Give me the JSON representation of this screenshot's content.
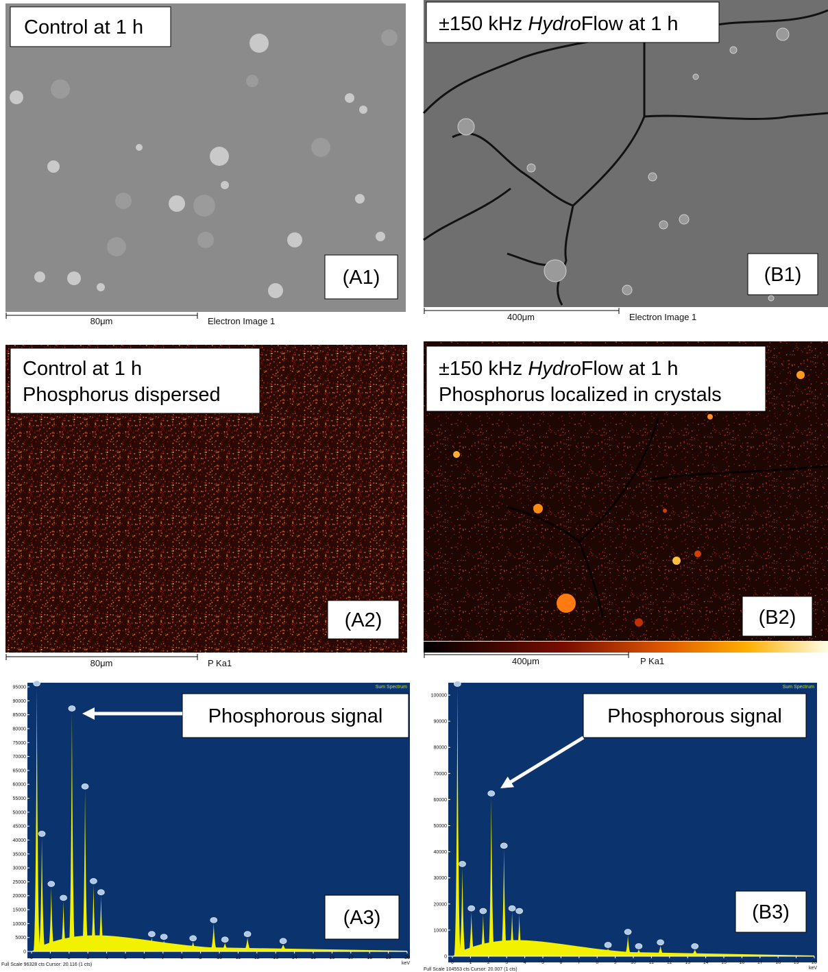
{
  "panels": {
    "a1": {
      "caption": "Control at 1 h",
      "tag": "(A1)",
      "scale": "80μm",
      "source": "Electron Image 1"
    },
    "b1": {
      "caption": {
        "pre": "±150 kHz ",
        "italic": "Hydro",
        "post": "Flow at 1 h"
      },
      "tag": "(B1)",
      "scale": "400μm",
      "source": "Electron Image 1"
    },
    "a2": {
      "caption": [
        "Control at 1 h",
        "Phosphorus dispersed"
      ],
      "tag": "(A2)",
      "scale": "80μm",
      "source": "P Ka1"
    },
    "b2": {
      "caption": {
        "pre": "±150 kHz ",
        "italic": "Hydro",
        "post": "Flow at 1 h",
        "line2": "Phosphorus localized in crystals"
      },
      "tag": "(B2)",
      "scale": "400μm",
      "source": "P Ka1"
    }
  },
  "spectra": [
    {
      "title": "Sum Spectrum",
      "annotation": "Phosphorous signal",
      "tag": "(A3)",
      "footer": "Full Scale 96328 cts Cursor: 20.116  (1 cts)",
      "xunit": "keV",
      "xlim": [
        0,
        20
      ],
      "xticks": [
        0,
        1,
        2,
        3,
        4,
        5,
        6,
        7,
        8,
        9,
        10,
        11,
        12,
        13,
        14,
        15,
        16,
        17,
        18,
        19,
        20
      ],
      "ylim": [
        0,
        95000
      ],
      "yticks": [
        0,
        5000,
        10000,
        15000,
        20000,
        25000,
        30000,
        35000,
        40000,
        45000,
        50000,
        55000,
        60000,
        65000,
        70000,
        75000,
        80000,
        85000,
        90000,
        95000
      ],
      "peaks": [
        {
          "x": 0.28,
          "y": 95000
        },
        {
          "x": 0.55,
          "y": 41000
        },
        {
          "x": 1.05,
          "y": 23000
        },
        {
          "x": 1.7,
          "y": 18000
        },
        {
          "x": 2.15,
          "y": 86000
        },
        {
          "x": 2.85,
          "y": 58000
        },
        {
          "x": 3.3,
          "y": 24000
        },
        {
          "x": 3.7,
          "y": 20000
        },
        {
          "x": 6.4,
          "y": 5000
        },
        {
          "x": 7.05,
          "y": 4000
        },
        {
          "x": 8.6,
          "y": 3500
        },
        {
          "x": 9.7,
          "y": 10000
        },
        {
          "x": 10.3,
          "y": 3000
        },
        {
          "x": 11.5,
          "y": 5000
        },
        {
          "x": 13.4,
          "y": 2500
        }
      ]
    },
    {
      "title": "Sum Spectrum",
      "annotation": "Phosphorous signal",
      "tag": "(B3)",
      "footer": "Full Scale 104553 cts Cursor: 20.007  (1 cts)",
      "xunit": "keV",
      "xlim": [
        0,
        20
      ],
      "xticks": [
        0,
        1,
        2,
        3,
        4,
        5,
        6,
        7,
        8,
        9,
        10,
        11,
        12,
        13,
        14,
        15,
        16,
        17,
        18,
        19,
        20
      ],
      "ylim": [
        0,
        100000
      ],
      "yticks": [
        0,
        10000,
        20000,
        30000,
        40000,
        50000,
        60000,
        70000,
        80000,
        90000,
        100000
      ],
      "peaks": [
        {
          "x": 0.28,
          "y": 103000
        },
        {
          "x": 0.55,
          "y": 34000
        },
        {
          "x": 1.05,
          "y": 17000
        },
        {
          "x": 1.7,
          "y": 16000
        },
        {
          "x": 2.15,
          "y": 61000
        },
        {
          "x": 2.85,
          "y": 41000
        },
        {
          "x": 3.3,
          "y": 17000
        },
        {
          "x": 3.7,
          "y": 16000
        },
        {
          "x": 8.6,
          "y": 3000
        },
        {
          "x": 9.7,
          "y": 8000
        },
        {
          "x": 10.3,
          "y": 2500
        },
        {
          "x": 11.5,
          "y": 4000
        },
        {
          "x": 13.4,
          "y": 2500
        }
      ]
    }
  ]
}
